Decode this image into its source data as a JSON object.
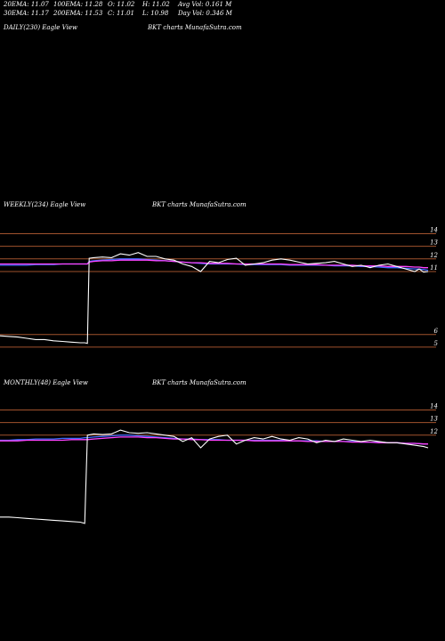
{
  "stats": {
    "ema20": "20EMA: 11.07",
    "ema30": "30EMA: 11.17",
    "ema100": "100EMA: 11.28",
    "ema200": "200EMA: 11.53",
    "open": "O: 11.02",
    "close": "C: 11.01",
    "high": "H: 11.02",
    "low": "L: 10.98",
    "avg_vol": "Avg Vol: 0.161 M",
    "day_vol": "Day Vol: 0.346  M"
  },
  "panels": {
    "daily": {
      "label": "DAILY(230) Eagle  View",
      "brand": "BKT charts MunafaSutra.com"
    },
    "weekly": {
      "label": "WEEKLY(234) Eagle  View",
      "brand": "BKT charts MunafaSutra.com"
    },
    "monthly": {
      "label": "MONTHLY(48) Eagle  View",
      "brand": "BKT charts MunafaSutra.com"
    }
  },
  "chart_data": [
    {
      "type": "line",
      "panel": "weekly",
      "yticks": [
        14,
        13,
        12,
        11,
        6,
        5
      ],
      "hlines": [
        14,
        13,
        12,
        11,
        6,
        5
      ],
      "ylim": [
        4.5,
        14.6
      ],
      "x": [
        0,
        10,
        20,
        30,
        40,
        50,
        60,
        70,
        80,
        90,
        95,
        98,
        100,
        105,
        115,
        125,
        135,
        145,
        155,
        165,
        175,
        185,
        195,
        205,
        215,
        225,
        235,
        245,
        255,
        265,
        275,
        285,
        295,
        305,
        315,
        325,
        335,
        345,
        355,
        365,
        375,
        385,
        395,
        405,
        415,
        425,
        435,
        445,
        455,
        465,
        470,
        475,
        480
      ],
      "series": [
        {
          "color": "#ffffff",
          "values": [
            5.9,
            5.85,
            5.8,
            5.7,
            5.6,
            5.6,
            5.5,
            5.45,
            5.4,
            5.35,
            5.35,
            5.3,
            12.05,
            12.1,
            12.15,
            12.1,
            12.4,
            12.3,
            12.5,
            12.2,
            12.2,
            12.0,
            11.9,
            11.6,
            11.4,
            11.0,
            11.8,
            11.7,
            11.95,
            12.05,
            11.5,
            11.6,
            11.7,
            11.9,
            12.0,
            11.9,
            11.75,
            11.6,
            11.65,
            11.7,
            11.8,
            11.6,
            11.4,
            11.5,
            11.3,
            11.5,
            11.6,
            11.4,
            11.2,
            11.0,
            11.2,
            10.95,
            11.0
          ]
        },
        {
          "color": "#3d6bff",
          "values": [
            11.5,
            11.5,
            11.5,
            11.5,
            11.55,
            11.55,
            11.55,
            11.6,
            11.6,
            11.6,
            11.6,
            11.6,
            11.8,
            11.85,
            11.9,
            11.95,
            12.0,
            12.0,
            12.0,
            11.95,
            11.9,
            11.85,
            11.8,
            11.75,
            11.7,
            11.65,
            11.6,
            11.6,
            11.6,
            11.6,
            11.55,
            11.55,
            11.55,
            11.55,
            11.55,
            11.5,
            11.5,
            11.5,
            11.5,
            11.5,
            11.45,
            11.45,
            11.45,
            11.4,
            11.4,
            11.35,
            11.3,
            11.3,
            11.25,
            11.2,
            11.2,
            11.15,
            11.1
          ]
        },
        {
          "color": "#ff44ff",
          "values": [
            11.6,
            11.6,
            11.6,
            11.6,
            11.6,
            11.6,
            11.6,
            11.6,
            11.6,
            11.6,
            11.6,
            11.6,
            11.75,
            11.8,
            11.85,
            11.85,
            11.9,
            11.9,
            11.9,
            11.9,
            11.85,
            11.85,
            11.8,
            11.75,
            11.7,
            11.7,
            11.65,
            11.65,
            11.65,
            11.6,
            11.6,
            11.6,
            11.6,
            11.6,
            11.6,
            11.55,
            11.55,
            11.55,
            11.55,
            11.5,
            11.5,
            11.5,
            11.5,
            11.45,
            11.45,
            11.45,
            11.4,
            11.4,
            11.4,
            11.35,
            11.35,
            11.3,
            11.3
          ]
        }
      ]
    },
    {
      "type": "line",
      "panel": "monthly",
      "yticks": [
        14,
        13,
        12
      ],
      "hlines": [
        14,
        13,
        12
      ],
      "ylim": [
        4.5,
        14.6
      ],
      "x": [
        0,
        10,
        20,
        30,
        40,
        50,
        60,
        70,
        80,
        90,
        95,
        98,
        105,
        115,
        125,
        135,
        145,
        155,
        165,
        175,
        185,
        195,
        205,
        215,
        225,
        235,
        245,
        255,
        265,
        275,
        285,
        295,
        305,
        315,
        325,
        335,
        345,
        355,
        365,
        375,
        385,
        395,
        405,
        415,
        425,
        435,
        445,
        455,
        465,
        475,
        480
      ],
      "series": [
        {
          "color": "#ffffff",
          "values": [
            5.5,
            5.5,
            5.45,
            5.4,
            5.35,
            5.3,
            5.25,
            5.2,
            5.15,
            5.1,
            5.0,
            12.0,
            12.1,
            12.05,
            12.1,
            12.4,
            12.2,
            12.15,
            12.2,
            12.1,
            12.0,
            11.9,
            11.5,
            11.8,
            11.0,
            11.7,
            11.9,
            12.0,
            11.3,
            11.6,
            11.8,
            11.7,
            11.9,
            11.7,
            11.6,
            11.8,
            11.7,
            11.4,
            11.6,
            11.5,
            11.7,
            11.6,
            11.5,
            11.6,
            11.5,
            11.4,
            11.4,
            11.3,
            11.2,
            11.1,
            11.0
          ]
        },
        {
          "color": "#3d6bff",
          "values": [
            11.6,
            11.6,
            11.65,
            11.65,
            11.7,
            11.7,
            11.7,
            11.75,
            11.75,
            11.75,
            11.8,
            11.8,
            11.85,
            11.9,
            11.95,
            12.0,
            12.0,
            11.95,
            11.9,
            11.85,
            11.8,
            11.75,
            11.7,
            11.7,
            11.65,
            11.65,
            11.65,
            11.6,
            11.6,
            11.6,
            11.6,
            11.6,
            11.6,
            11.6,
            11.55,
            11.55,
            11.55,
            11.55,
            11.5,
            11.5,
            11.5,
            11.5,
            11.45,
            11.45,
            11.45,
            11.4,
            11.4,
            11.35,
            11.35,
            11.3,
            11.3
          ]
        },
        {
          "color": "#ff44ff",
          "values": [
            11.55,
            11.55,
            11.55,
            11.6,
            11.6,
            11.6,
            11.6,
            11.6,
            11.65,
            11.65,
            11.65,
            11.65,
            11.7,
            11.75,
            11.8,
            11.85,
            11.85,
            11.85,
            11.8,
            11.8,
            11.75,
            11.7,
            11.7,
            11.65,
            11.65,
            11.6,
            11.6,
            11.6,
            11.6,
            11.6,
            11.55,
            11.55,
            11.55,
            11.55,
            11.55,
            11.55,
            11.5,
            11.5,
            11.5,
            11.5,
            11.5,
            11.45,
            11.45,
            11.45,
            11.4,
            11.4,
            11.4,
            11.35,
            11.35,
            11.3,
            11.3
          ]
        }
      ]
    }
  ]
}
